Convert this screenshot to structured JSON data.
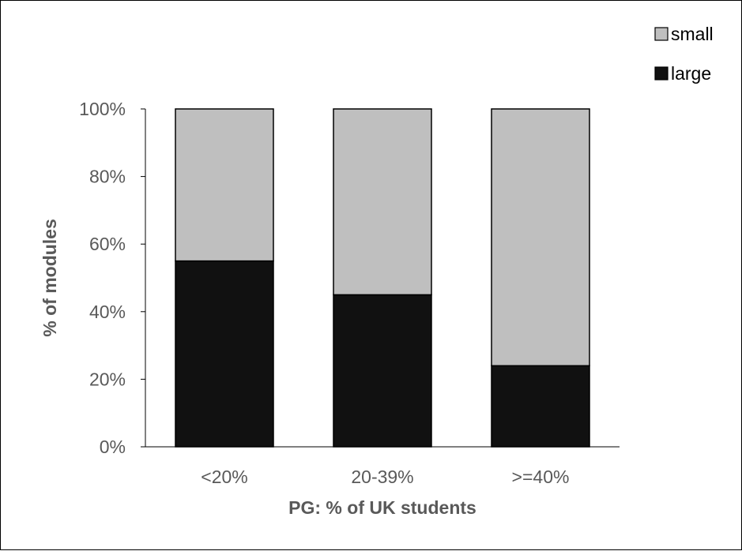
{
  "chart_data": {
    "type": "bar",
    "stacked": true,
    "percent_stacked": true,
    "categories": [
      "<20%",
      "20-39%",
      ">=40%"
    ],
    "series": [
      {
        "name": "large",
        "values": [
          55,
          45,
          24
        ],
        "color": "#111111"
      },
      {
        "name": "small",
        "values": [
          45,
          55,
          76
        ],
        "color": "#bfbfbf"
      }
    ],
    "title": "",
    "xlabel": "PG: % of UK students",
    "ylabel": "% of modules",
    "ylim": [
      0,
      100
    ],
    "yticks": [
      "0%",
      "20%",
      "40%",
      "60%",
      "80%",
      "100%"
    ],
    "grid": false,
    "legend_position": "top-right",
    "legend_order": [
      "small",
      "large"
    ]
  }
}
